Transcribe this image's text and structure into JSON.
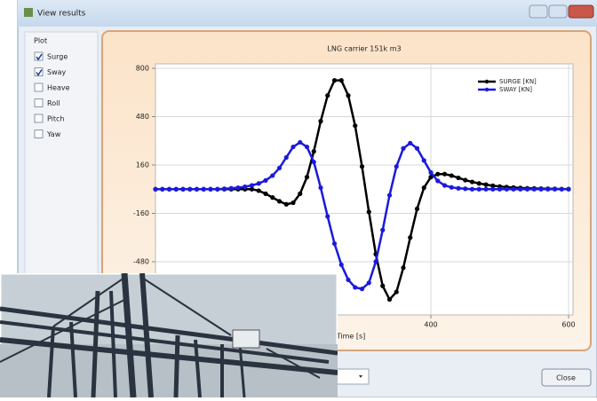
{
  "window": {
    "title": "View results",
    "plot_group": "Plot",
    "options": [
      {
        "label": "Surge",
        "checked": true
      },
      {
        "label": "Sway",
        "checked": true
      },
      {
        "label": "Heave",
        "checked": false
      },
      {
        "label": "Roll",
        "checked": false
      },
      {
        "label": "Pitch",
        "checked": false
      },
      {
        "label": "Yaw",
        "checked": false
      }
    ],
    "close_button": "Close"
  },
  "chart_data": {
    "type": "line",
    "title": "LNG carrier 151k m3",
    "x_label": "Time [s]",
    "x": [
      0,
      10,
      20,
      30,
      40,
      50,
      60,
      70,
      80,
      90,
      100,
      110,
      120,
      130,
      140,
      150,
      160,
      170,
      180,
      190,
      200,
      210,
      220,
      230,
      240,
      250,
      260,
      270,
      280,
      290,
      300,
      310,
      320,
      330,
      340,
      350,
      360,
      370,
      380,
      390,
      400,
      410,
      420,
      430,
      440,
      450,
      460,
      470,
      480,
      490,
      500,
      510,
      520,
      530,
      540,
      550,
      560,
      570,
      580,
      590,
      600
    ],
    "series": [
      {
        "name": "SURGE [KN]",
        "color": "#000000",
        "values": [
          0,
          0,
          0,
          0,
          0,
          0,
          0,
          0,
          0,
          0,
          0,
          0,
          0,
          0,
          0,
          -10,
          -30,
          -55,
          -80,
          -100,
          -90,
          -30,
          80,
          250,
          450,
          620,
          720,
          720,
          620,
          420,
          150,
          -150,
          -430,
          -640,
          -730,
          -680,
          -520,
          -320,
          -130,
          10,
          80,
          100,
          100,
          90,
          75,
          60,
          48,
          38,
          30,
          23,
          18,
          14,
          11,
          8,
          6,
          5,
          4,
          3,
          2,
          1,
          1
        ]
      },
      {
        "name": "SWAY [KN]",
        "color": "#1a1adc",
        "values": [
          0,
          0,
          0,
          0,
          0,
          0,
          0,
          0,
          0,
          0,
          3,
          6,
          10,
          16,
          25,
          38,
          58,
          90,
          140,
          210,
          280,
          310,
          280,
          180,
          10,
          -180,
          -360,
          -500,
          -600,
          -650,
          -660,
          -620,
          -480,
          -270,
          -40,
          150,
          270,
          305,
          270,
          190,
          110,
          55,
          25,
          12,
          6,
          3,
          0,
          0,
          0,
          0,
          0,
          0,
          0,
          0,
          0,
          0,
          0,
          0,
          0,
          0,
          0
        ]
      }
    ],
    "xlim": [
      0,
      600
    ],
    "xticks": [
      400,
      600
    ],
    "ylim": [
      -800,
      800
    ],
    "yticks": [
      -480,
      -160,
      160,
      480,
      800
    ],
    "grid": true,
    "legend": "upper-right"
  }
}
